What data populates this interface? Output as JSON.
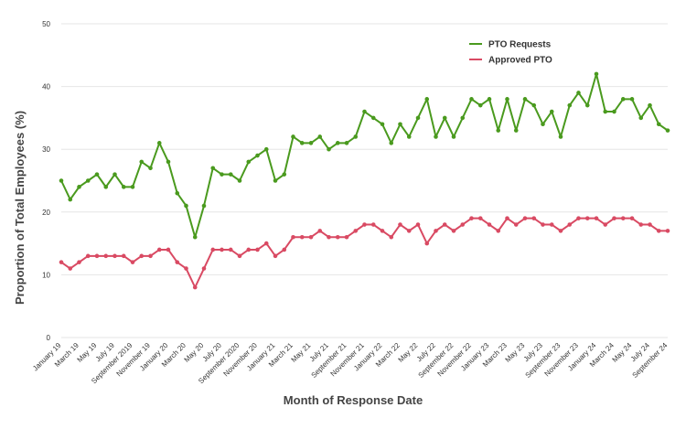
{
  "chart_data": {
    "type": "line",
    "title": "",
    "xlabel": "Month of Response Date",
    "ylabel": "Proportion of Total Employees (%)",
    "ylim": [
      0,
      50
    ],
    "yticks": [
      0,
      10,
      20,
      30,
      40,
      50
    ],
    "grid": "horizontal",
    "legend_position": "top-right",
    "categories": [
      "January 19",
      "February 19",
      "March 19",
      "April 19",
      "May 19",
      "June 19",
      "July 19",
      "August 19",
      "September 2019",
      "October 19",
      "November 19",
      "December 19",
      "January 20",
      "February 20",
      "March 20",
      "April 20",
      "May 20",
      "June 20",
      "July 20",
      "August 20",
      "September 2020",
      "October 20",
      "November 20",
      "December 20",
      "January 21",
      "February 21",
      "March 21",
      "April 21",
      "May 21",
      "June 21",
      "July 21",
      "August 21",
      "September 21",
      "October 21",
      "November 21",
      "December 21",
      "January 22",
      "February 22",
      "March 22",
      "April 22",
      "May 22",
      "June 22",
      "July 22",
      "August 22",
      "September 22",
      "October 22",
      "November 22",
      "December 22",
      "January 23",
      "February 23",
      "March 23",
      "April 23",
      "May 23",
      "June 23",
      "July 23",
      "August 23",
      "September 23",
      "October 23",
      "November 23",
      "December 23",
      "January 24",
      "February 24",
      "March 24",
      "April 24",
      "May 24",
      "June 24",
      "July 24",
      "August 24",
      "September 24"
    ],
    "tick_labels": [
      "January 19",
      "March 19",
      "May 19",
      "July 19",
      "September 2019",
      "November 19",
      "January 20",
      "March 20",
      "May 20",
      "July 20",
      "September 2020",
      "November 20",
      "January 21",
      "March 21",
      "May 21",
      "July 21",
      "September 21",
      "November 21",
      "January 22",
      "March 22",
      "May 22",
      "July 22",
      "September 22",
      "November 22",
      "January 23",
      "March 23",
      "May 23",
      "July 23",
      "September 23",
      "November 23",
      "January 24",
      "March 24",
      "May 24",
      "July 24",
      "September 24"
    ],
    "series": [
      {
        "name": "PTO Requests",
        "color": "#4a9a1e",
        "values": [
          25,
          22,
          24,
          25,
          26,
          24,
          26,
          24,
          24,
          28,
          27,
          31,
          28,
          23,
          21,
          16,
          21,
          27,
          26,
          26,
          25,
          28,
          29,
          30,
          25,
          26,
          32,
          31,
          31,
          32,
          30,
          31,
          31,
          32,
          36,
          35,
          34,
          31,
          34,
          32,
          35,
          38,
          32,
          35,
          32,
          35,
          38,
          37,
          38,
          33,
          38,
          33,
          38,
          37,
          34,
          36,
          32,
          37,
          39,
          37,
          42,
          36,
          36,
          38,
          38,
          35,
          37,
          34,
          33
        ]
      },
      {
        "name": "Approved PTO",
        "color": "#d94a63",
        "values": [
          12,
          11,
          12,
          13,
          13,
          13,
          13,
          13,
          12,
          13,
          13,
          14,
          14,
          12,
          11,
          8,
          11,
          14,
          14,
          14,
          13,
          14,
          14,
          15,
          13,
          14,
          16,
          16,
          16,
          17,
          16,
          16,
          16,
          17,
          18,
          18,
          17,
          16,
          18,
          17,
          18,
          15,
          17,
          18,
          17,
          18,
          19,
          19,
          18,
          17,
          19,
          18,
          19,
          19,
          18,
          18,
          17,
          18,
          19,
          19,
          19,
          18,
          19,
          19,
          19,
          18,
          18,
          17,
          17
        ]
      }
    ]
  }
}
